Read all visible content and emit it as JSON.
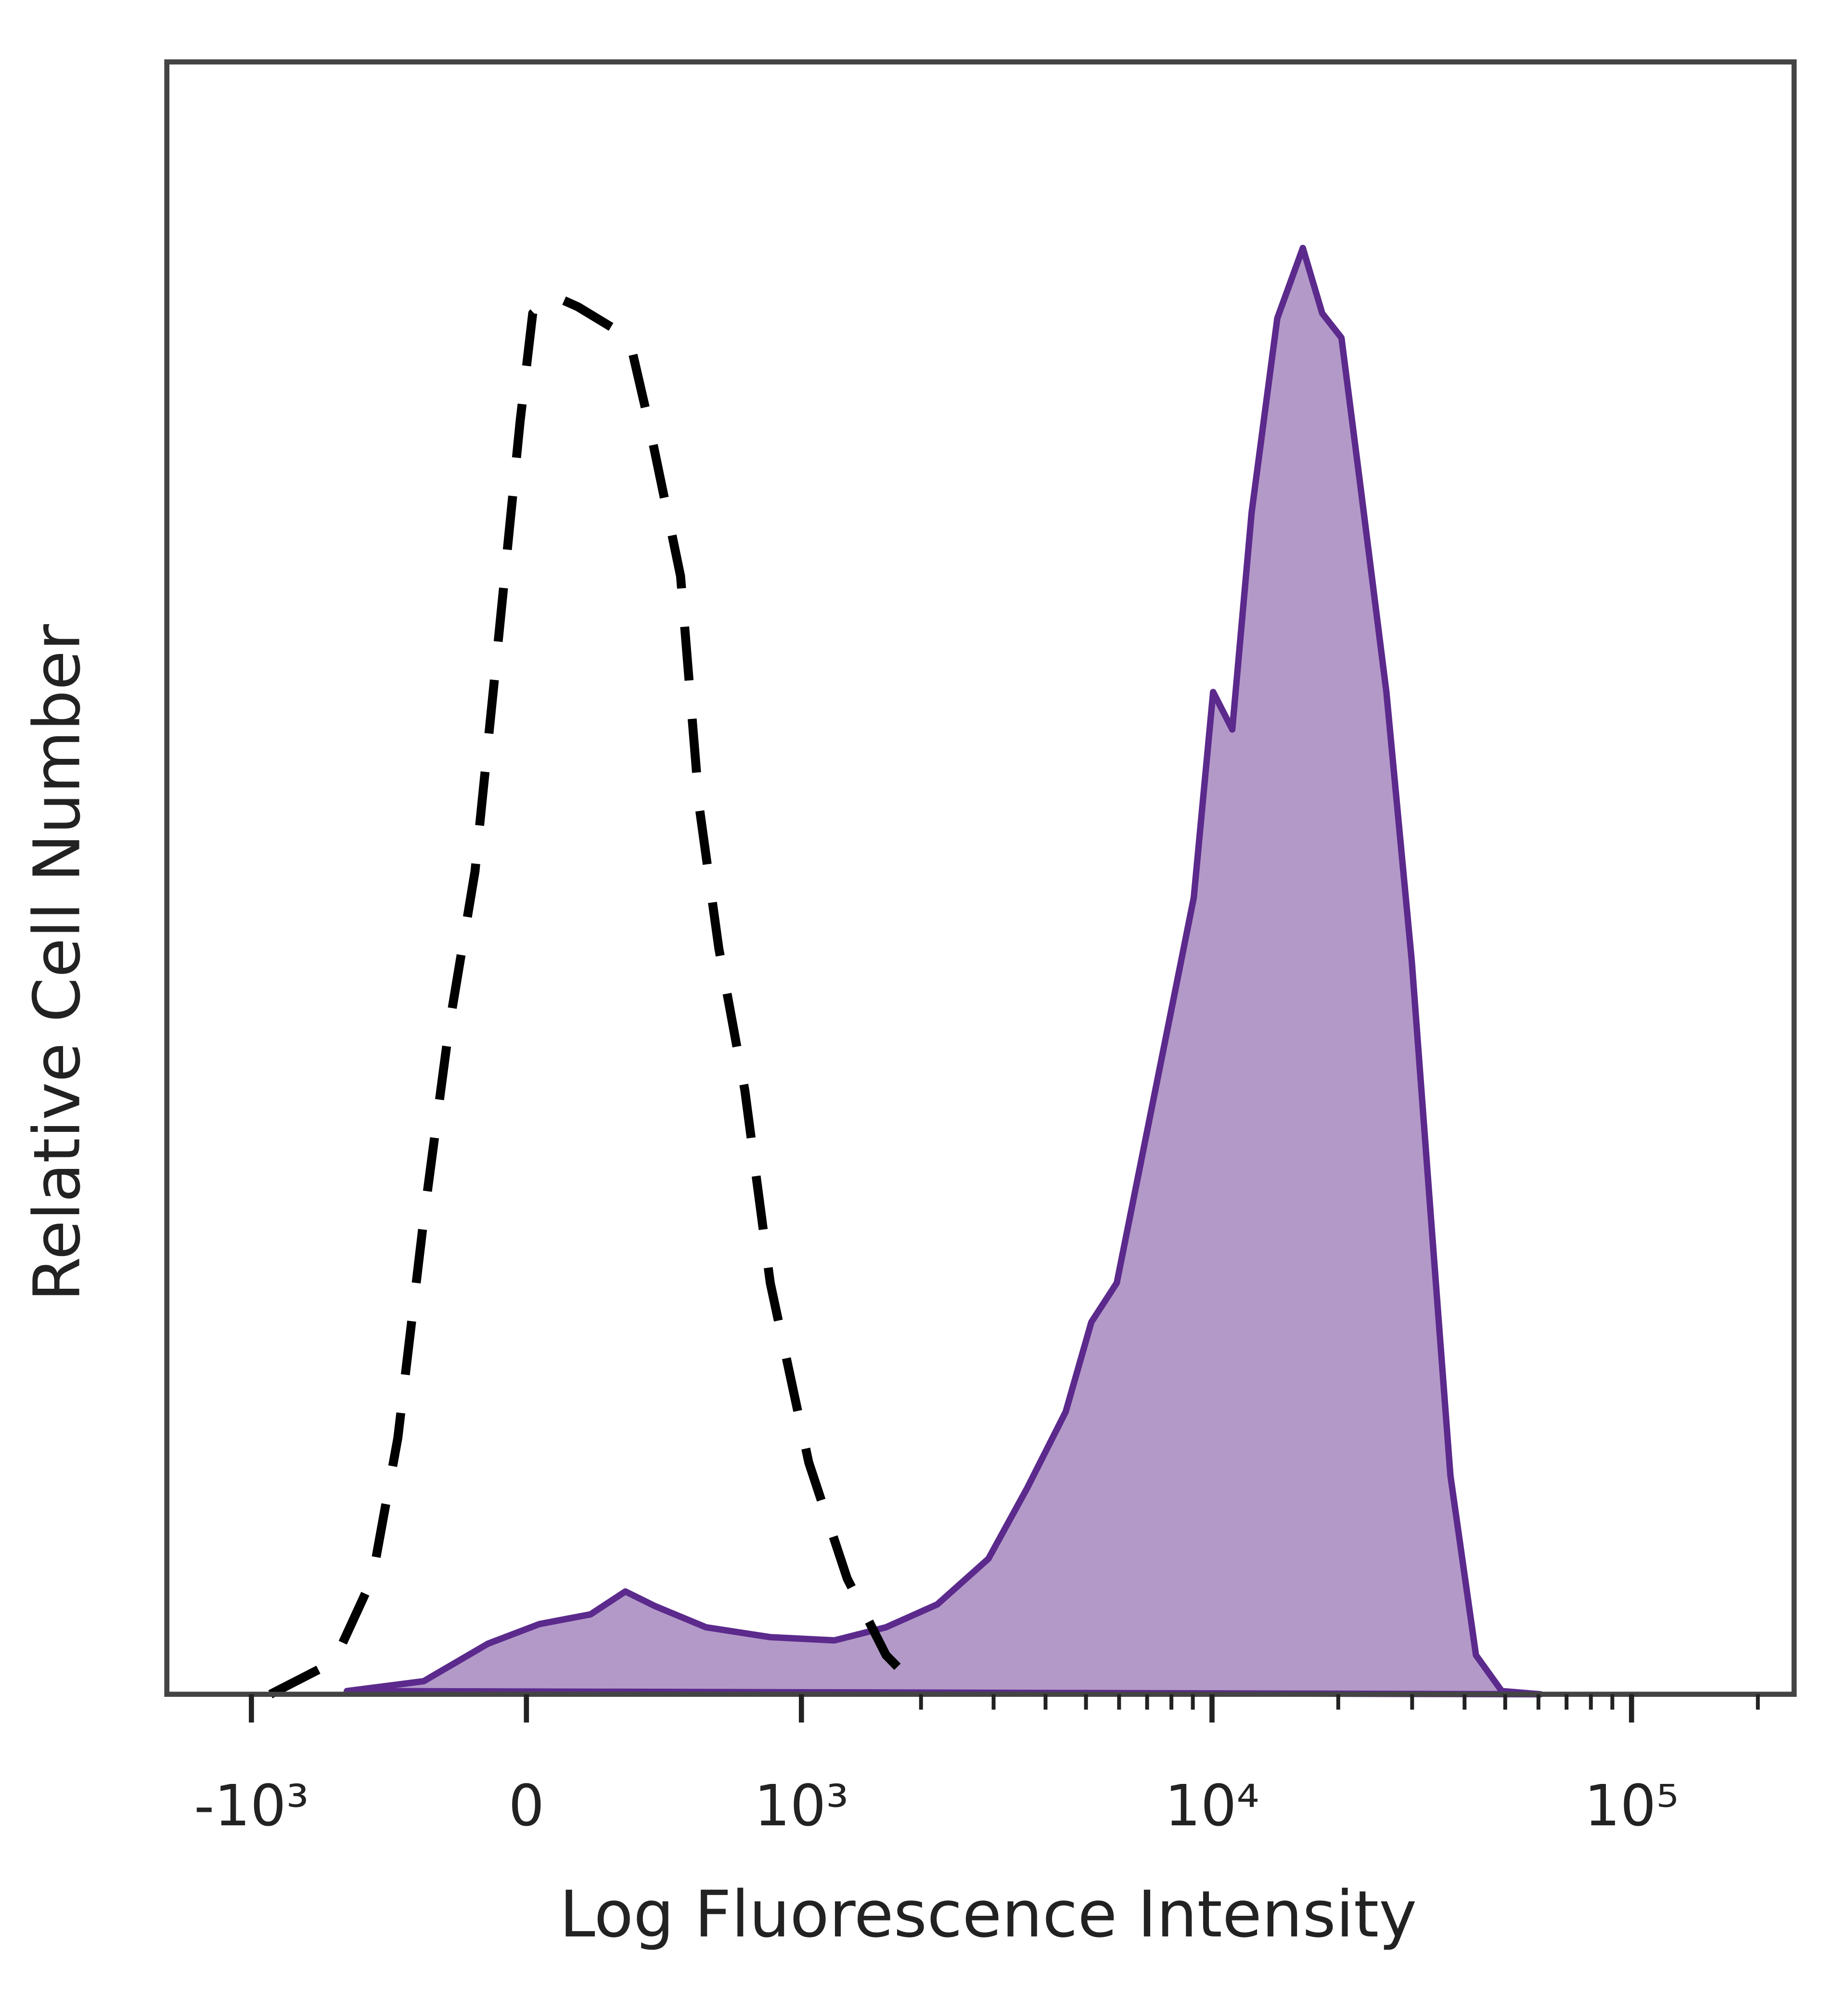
{
  "chart_data": {
    "type": "flow-histogram",
    "xlabel": "Log Fluorescence Intensity",
    "ylabel": "Relative Cell Number",
    "xscale": "asinh",
    "xlim": [
      -1640,
      244000
    ],
    "ylim": [
      0,
      100
    ],
    "xticks": [
      {
        "value": -1000,
        "label": "-10³"
      },
      0,
      {
        "value": 1000,
        "label": "10³"
      },
      {
        "value": 10000,
        "label": "10⁴"
      },
      {
        "value": 100000,
        "label": "10⁵"
      }
    ],
    "xminorticks": [
      2000,
      3000,
      4000,
      5000,
      6000,
      7000,
      8000,
      9000,
      20000,
      30000,
      40000,
      50000,
      60000,
      70000,
      80000,
      90000,
      200000
    ],
    "series": [
      {
        "color": "#000000",
        "dashed": true,
        "x": [
          -890,
          -587,
          -442,
          -356,
          -276,
          -203,
          -133,
          -82,
          -49,
          -16,
          16,
          66,
          133,
          276,
          335,
          442,
          511,
          587,
          701,
          825,
          1045,
          1311,
          1640,
          2037
        ],
        "values": [
          0,
          2.0,
          7.1,
          15.7,
          29.1,
          40.9,
          50.4,
          62.2,
          70.1,
          78.0,
          84.6,
          85.7,
          85.0,
          83.1,
          78.0,
          68.5,
          54.3,
          45.7,
          37.0,
          25.2,
          14.2,
          7.1,
          2.4,
          0
        ]
      },
      {
        "color": "#5b2a8c",
        "fill_color": "#b399c8",
        "dashed": false,
        "x": [
          -536,
          -276,
          -99,
          33,
          167,
          265,
          356,
          536,
          825,
          1217,
          1640,
          2190,
          2915,
          3610,
          4470,
          5150,
          5925,
          7320,
          9045,
          10060,
          11180,
          12430,
          14310,
          16470,
          18310,
          20350,
          22600,
          26040,
          29950,
          33290,
          37010,
          42590,
          49060,
          60640
        ],
        "values": [
          0.2,
          0.8,
          3.1,
          4.3,
          4.9,
          6.3,
          5.4,
          4.1,
          3.5,
          3.3,
          4.1,
          5.5,
          8.3,
          12.6,
          17.3,
          22.8,
          25.2,
          37.0,
          48.8,
          61.4,
          59.1,
          72.4,
          84.3,
          88.6,
          84.6,
          83.1,
          74.0,
          61.4,
          44.9,
          29.1,
          13.4,
          2.4,
          0.2,
          0
        ]
      }
    ]
  }
}
